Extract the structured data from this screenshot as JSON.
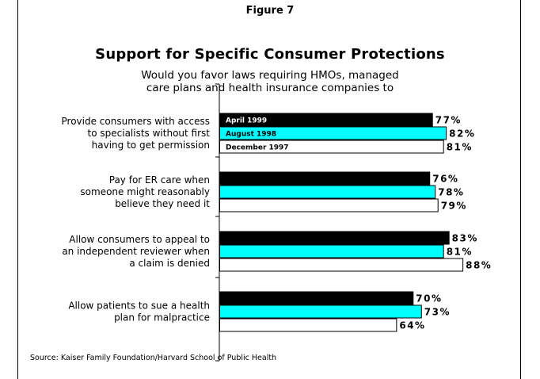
{
  "figure_label": "Figure 7",
  "source": "Source: Kaiser Family Foundation/Harvard School of Public Health",
  "chart_data": {
    "type": "bar",
    "orientation": "horizontal",
    "title": "Support for Specific Consumer Protections",
    "subtitle": "Would you favor laws requiring HMOs, managed care plans and health insurance companies to",
    "categories": [
      [
        "Provide consumers with access",
        "to specialists without first",
        "having to get permission"
      ],
      [
        "Pay for ER care when",
        "someone might reasonably",
        "believe they need it"
      ],
      [
        "Allow consumers to appeal to",
        "an independent reviewer when",
        "a claim is denied"
      ],
      [
        "Allow patients to sue a health",
        "plan for malpractice"
      ]
    ],
    "series": [
      {
        "name": "April 1999",
        "color": "#000000",
        "label_color": "#ffffff",
        "values": [
          77,
          76,
          83,
          70
        ]
      },
      {
        "name": "August 1998",
        "color": "#00ffff",
        "label_color": "#000000",
        "values": [
          82,
          78,
          81,
          73
        ]
      },
      {
        "name": "December 1997",
        "color": "#ffffff",
        "label_color": "#000000",
        "values": [
          81,
          79,
          88,
          64
        ]
      }
    ],
    "value_suffix": "%",
    "xlim": [
      0,
      100
    ],
    "legend": "inside first group bars",
    "grid": false
  }
}
